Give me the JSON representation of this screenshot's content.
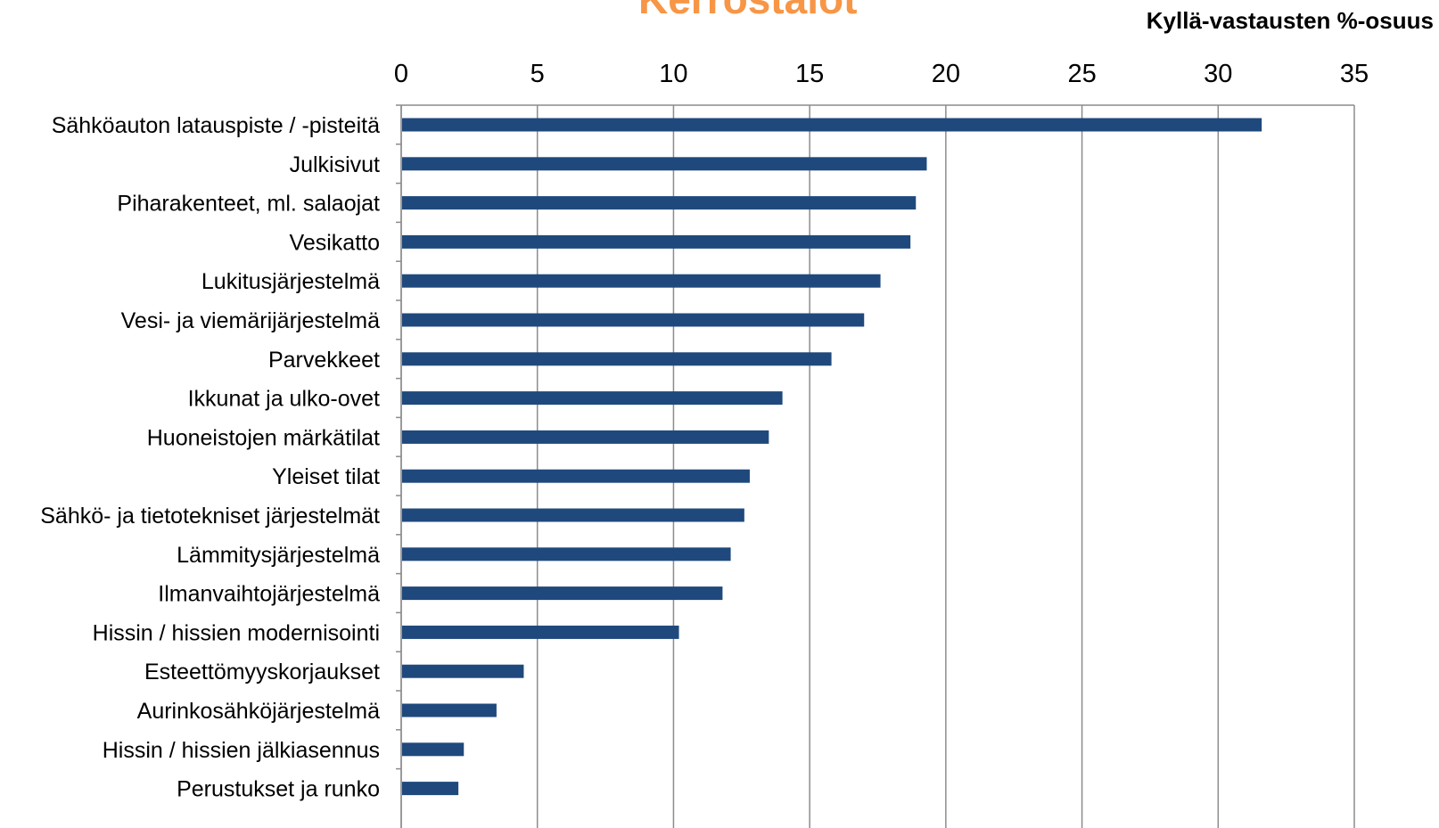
{
  "chart_data": {
    "type": "bar",
    "orientation": "horizontal",
    "title": "Kerrostalot",
    "unit_label": "Kyllä-vastausten %-osuus",
    "xlim": [
      0,
      35
    ],
    "xticks": [
      "0",
      "5",
      "10",
      "15",
      "20",
      "25",
      "30",
      "35"
    ],
    "grid": true,
    "color": "#1f497d",
    "categories": [
      "Sähköauton latauspiste / -pisteitä",
      "Julkisivut",
      "Piharakenteet, ml. salaojat",
      "Vesikatto",
      "Lukitusjärjestelmä",
      "Vesi- ja viemärijärjestelmä",
      "Parvekkeet",
      "Ikkunat ja ulko-ovet",
      "Huoneistojen märkätilat",
      "Yleiset tilat",
      "Sähkö- ja tietotekniset järjestelmät",
      "Lämmitysjärjestelmä",
      "Ilmanvaihtojärjestelmä",
      "Hissin / hissien modernisointi",
      "Esteettömyyskorjaukset",
      "Aurinkosähköjärjestelmä",
      "Hissin / hissien jälkiasennus",
      "Perustukset ja runko"
    ],
    "values": [
      31.6,
      19.3,
      18.9,
      18.7,
      17.6,
      17.0,
      15.8,
      14.0,
      13.5,
      12.8,
      12.6,
      12.1,
      11.8,
      10.2,
      4.5,
      3.5,
      2.3,
      2.1
    ]
  }
}
